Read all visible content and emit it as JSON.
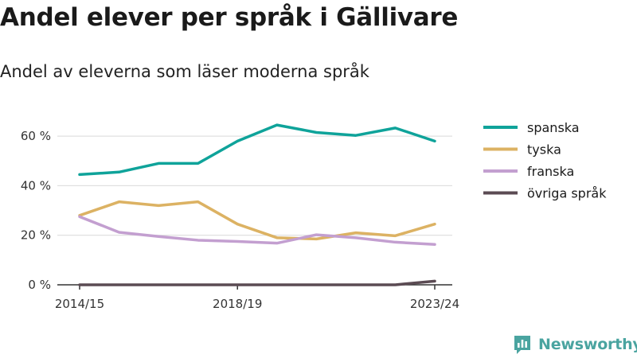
{
  "title": "Andel elever per språk i Gällivare",
  "subtitle": "Andel av eleverna som läser moderna språk",
  "brand": {
    "name": "Newsworthy",
    "color": "#4aa4a0",
    "icon": "newsworthy-logo-icon"
  },
  "chart_data": {
    "type": "line",
    "title": "Andel elever per språk i Gällivare",
    "subtitle": "Andel av eleverna som läser moderna språk",
    "xlabel": "",
    "ylabel": "",
    "x": [
      "2014/15",
      "2015/16",
      "2016/17",
      "2017/18",
      "2018/19",
      "2019/20",
      "2020/21",
      "2021/22",
      "2022/23",
      "2023/24"
    ],
    "x_tick_labels": [
      {
        "index": 0,
        "label": "2014/15"
      },
      {
        "index": 4,
        "label": "2018/19"
      },
      {
        "index": 9,
        "label": "2023/24"
      }
    ],
    "ylim": [
      0,
      70
    ],
    "y_ticks": [
      {
        "value": 0,
        "label": "0 %"
      },
      {
        "value": 20,
        "label": "20 %"
      },
      {
        "value": 40,
        "label": "40 %"
      },
      {
        "value": 60,
        "label": "60 %"
      }
    ],
    "grid": "horizontal",
    "legend_position": "right",
    "series": [
      {
        "name": "spanska",
        "color": "#0fa39a",
        "values": [
          44.5,
          45.5,
          49,
          49,
          58,
          64.5,
          61.5,
          60.3,
          63.3,
          58
        ]
      },
      {
        "name": "tyska",
        "color": "#dcb263",
        "values": [
          28,
          33.5,
          32,
          33.5,
          24.5,
          19,
          18.5,
          21,
          19.8,
          24.5
        ]
      },
      {
        "name": "franska",
        "color": "#c39fd0",
        "values": [
          27.5,
          21.2,
          19.5,
          18,
          17.5,
          16.8,
          20.2,
          19,
          17.2,
          16.3
        ]
      },
      {
        "name": "övriga språk",
        "color": "#5b4b53",
        "values": [
          0,
          0,
          0,
          0,
          0,
          0,
          0,
          0,
          0,
          1.5
        ]
      }
    ]
  }
}
